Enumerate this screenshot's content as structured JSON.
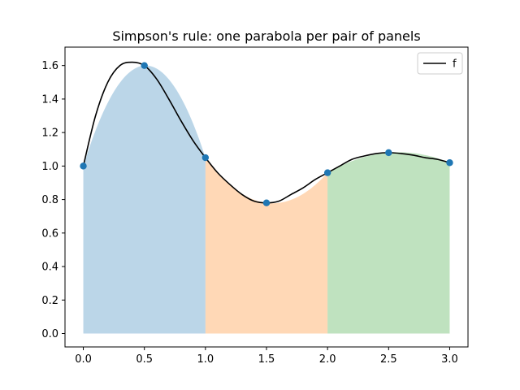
{
  "chart_data": {
    "type": "line",
    "title": "Simpson's rule: one parabola per pair of panels",
    "xlabel": "",
    "ylabel": "",
    "xlim": [
      -0.15,
      3.15
    ],
    "ylim": [
      -0.08,
      1.71
    ],
    "x_ticks": [
      0.0,
      0.5,
      1.0,
      1.5,
      2.0,
      2.5,
      3.0
    ],
    "x_tick_labels": [
      "0.0",
      "0.5",
      "1.0",
      "1.5",
      "2.0",
      "2.5",
      "3.0"
    ],
    "y_ticks": [
      0.0,
      0.2,
      0.4,
      0.6,
      0.8,
      1.0,
      1.2,
      1.4,
      1.6
    ],
    "y_tick_labels": [
      "0.0",
      "0.2",
      "0.4",
      "0.6",
      "0.8",
      "1.0",
      "1.2",
      "1.4",
      "1.6"
    ],
    "grid": false,
    "legend": {
      "location": "top-right",
      "entries": [
        "f"
      ]
    },
    "series": [
      {
        "name": "f",
        "color": "#000000",
        "x": [
          0.0,
          0.1,
          0.2,
          0.3,
          0.4,
          0.5,
          0.6,
          0.7,
          0.8,
          0.9,
          1.0,
          1.1,
          1.2,
          1.3,
          1.4,
          1.5,
          1.6,
          1.7,
          1.8,
          1.9,
          2.0,
          2.1,
          2.2,
          2.3,
          2.4,
          2.5,
          2.6,
          2.7,
          2.8,
          2.9,
          3.0
        ],
        "y": [
          1.0,
          1.3,
          1.5,
          1.6,
          1.62,
          1.6,
          1.52,
          1.4,
          1.27,
          1.15,
          1.05,
          0.96,
          0.89,
          0.83,
          0.79,
          0.78,
          0.79,
          0.83,
          0.87,
          0.92,
          0.96,
          1.0,
          1.04,
          1.06,
          1.075,
          1.08,
          1.075,
          1.065,
          1.05,
          1.04,
          1.02
        ]
      }
    ],
    "sample_points": {
      "color": "#1f77b4",
      "x": [
        0.0,
        0.5,
        1.0,
        1.5,
        2.0,
        2.5,
        3.0
      ],
      "y": [
        1.0,
        1.6,
        1.05,
        0.78,
        0.96,
        1.08,
        1.02
      ]
    },
    "panels": [
      {
        "x": [
          0.0,
          0.5,
          1.0
        ],
        "y": [
          1.0,
          1.6,
          1.05
        ],
        "color": "#1f77b4",
        "opacity": 0.3
      },
      {
        "x": [
          1.0,
          1.5,
          2.0
        ],
        "y": [
          1.05,
          0.78,
          0.96
        ],
        "color": "#ff7f0e",
        "opacity": 0.3
      },
      {
        "x": [
          2.0,
          2.5,
          3.0
        ],
        "y": [
          0.96,
          1.08,
          1.02
        ],
        "color": "#2ca02c",
        "opacity": 0.3
      }
    ]
  }
}
